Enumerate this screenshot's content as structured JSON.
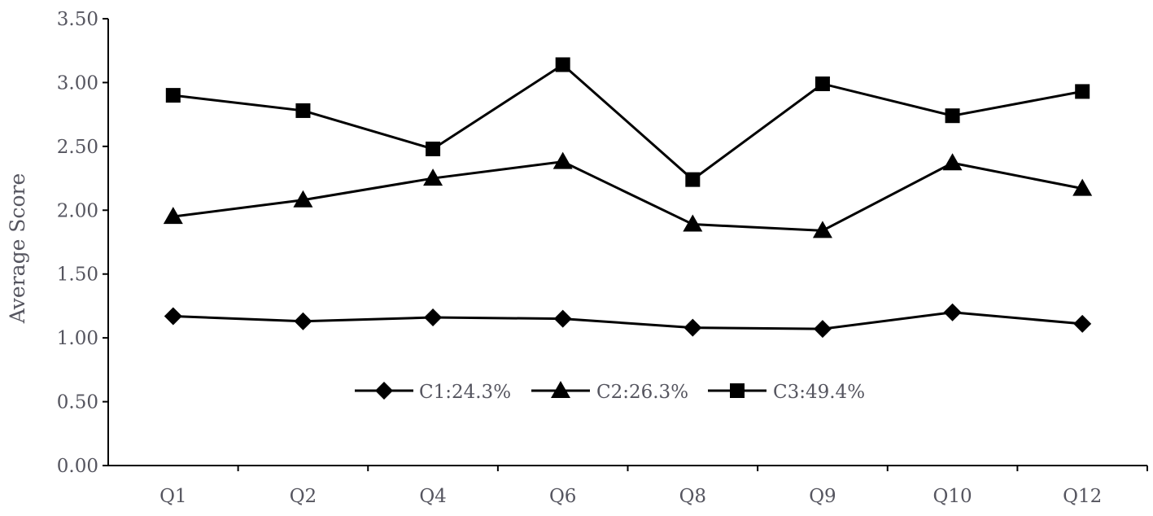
{
  "chart_data": {
    "type": "line",
    "title": "",
    "xlabel": "",
    "ylabel": "Average Score",
    "ylim": [
      0,
      3.5
    ],
    "yticks": [
      "0.00",
      "0.50",
      "1.00",
      "1.50",
      "2.00",
      "2.50",
      "3.00",
      "3.50"
    ],
    "categories": [
      "Q1",
      "Q2",
      "Q4",
      "Q6",
      "Q8",
      "Q9",
      "Q10",
      "Q12"
    ],
    "grid": false,
    "legend_position": "inside-bottom-center",
    "line_color": "#000000",
    "axis_color": "#000000",
    "text_color": "#55555f",
    "series": [
      {
        "name": "C1:24.3%",
        "marker": "diamond",
        "values": [
          1.17,
          1.13,
          1.16,
          1.15,
          1.08,
          1.07,
          1.2,
          1.11
        ]
      },
      {
        "name": "C2:26.3%",
        "marker": "triangle",
        "values": [
          1.95,
          2.08,
          2.25,
          2.38,
          1.89,
          1.84,
          2.37,
          2.17
        ]
      },
      {
        "name": "C3:49.4%",
        "marker": "square",
        "values": [
          2.9,
          2.78,
          2.48,
          3.14,
          2.24,
          2.99,
          2.74,
          2.93
        ]
      }
    ]
  }
}
